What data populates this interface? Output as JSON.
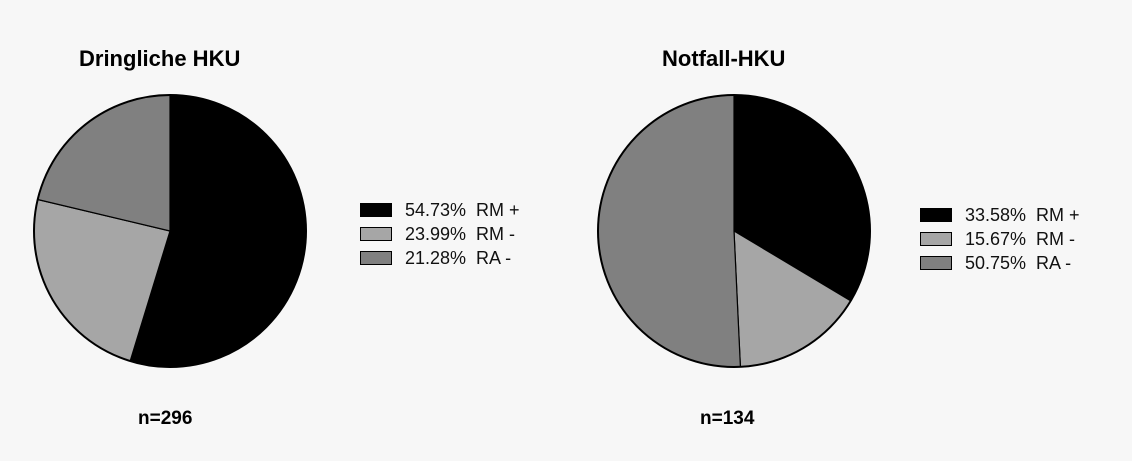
{
  "chart_data": [
    {
      "type": "pie",
      "title": "Dringliche HKU",
      "categories": [
        "RM +",
        "RM -",
        "RA -"
      ],
      "values": [
        54.73,
        23.99,
        21.28
      ],
      "labels": [
        "54.73%  RM +",
        "23.99%  RM -",
        "21.28%  RA -"
      ],
      "colors": [
        "#000000",
        "#a6a6a6",
        "#808080"
      ],
      "n_label": "n=296",
      "legend": "right"
    },
    {
      "type": "pie",
      "title": "Notfall-HKU",
      "categories": [
        "RM +",
        "RM -",
        "RA -"
      ],
      "values": [
        33.58,
        15.67,
        50.75
      ],
      "labels": [
        "33.58%  RM +",
        "15.67%  RM -",
        "50.75%  RA -"
      ],
      "colors": [
        "#000000",
        "#a6a6a6",
        "#808080"
      ],
      "n_label": "n=134",
      "legend": "right"
    }
  ]
}
